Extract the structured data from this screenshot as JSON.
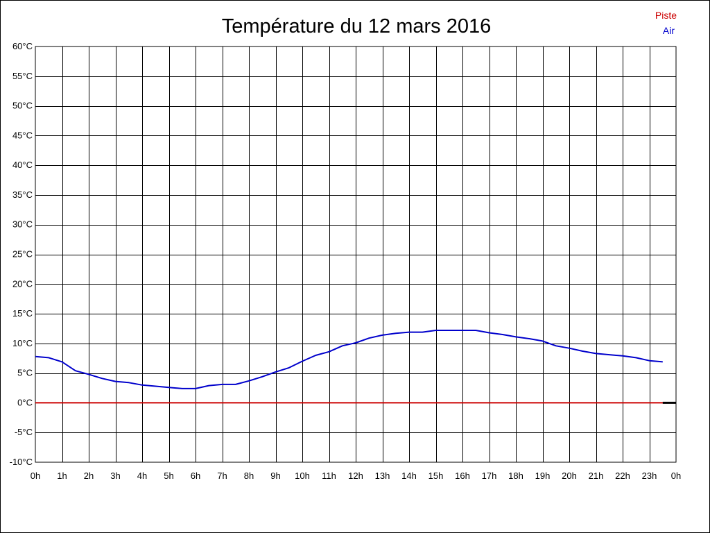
{
  "chart_data": {
    "type": "line",
    "title": "Température du 12 mars 2016",
    "xlabel": "",
    "ylabel": "",
    "x_tick_labels": [
      "0h",
      "1h",
      "2h",
      "3h",
      "4h",
      "5h",
      "6h",
      "7h",
      "8h",
      "9h",
      "10h",
      "11h",
      "12h",
      "13h",
      "14h",
      "15h",
      "16h",
      "17h",
      "18h",
      "19h",
      "20h",
      "21h",
      "22h",
      "23h",
      "0h"
    ],
    "y_tick_labels": [
      "60°C",
      "55°C",
      "50°C",
      "45°C",
      "40°C",
      "35°C",
      "30°C",
      "25°C",
      "20°C",
      "15°C",
      "10°C",
      "5°C",
      "0°C",
      "-5°C",
      "-10°C"
    ],
    "xlim": [
      0,
      24
    ],
    "ylim": [
      -10,
      60
    ],
    "y_step": 5,
    "x_step": 1,
    "grid": true,
    "legend_position": "top-right",
    "series": [
      {
        "name": "Piste",
        "color": "#cc0000",
        "x": [
          0,
          23.5
        ],
        "y": [
          0,
          0
        ]
      },
      {
        "name": "Air",
        "color": "#0000cc",
        "x": [
          0,
          0.5,
          1,
          1.5,
          2,
          2.5,
          3,
          3.5,
          4,
          4.5,
          5,
          5.5,
          6,
          6.5,
          7,
          7.5,
          8,
          8.5,
          9,
          9.5,
          10,
          10.5,
          11,
          11.5,
          12,
          12.5,
          13,
          13.5,
          14,
          14.5,
          15,
          15.5,
          16,
          16.5,
          17,
          17.5,
          18,
          18.5,
          19,
          19.5,
          20,
          20.5,
          21,
          21.5,
          22,
          22.5,
          23,
          23.5
        ],
        "y": [
          7.8,
          7.6,
          6.9,
          5.4,
          4.8,
          4.1,
          3.6,
          3.4,
          3.0,
          2.8,
          2.6,
          2.4,
          2.4,
          2.9,
          3.1,
          3.1,
          3.7,
          4.4,
          5.2,
          5.9,
          7.0,
          8.0,
          8.6,
          9.6,
          10.1,
          10.9,
          11.4,
          11.7,
          11.9,
          11.9,
          12.2,
          12.2,
          12.2,
          12.2,
          11.8,
          11.5,
          11.1,
          10.8,
          10.4,
          9.6,
          9.2,
          8.7,
          8.3,
          8.1,
          7.9,
          7.6,
          7.1,
          6.9
        ]
      }
    ]
  }
}
